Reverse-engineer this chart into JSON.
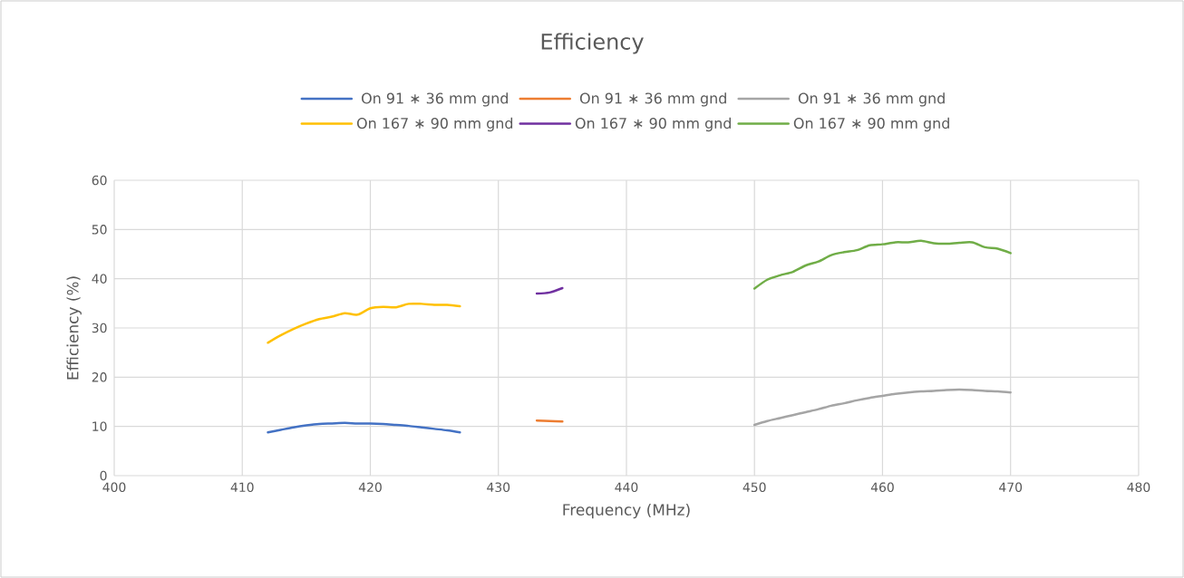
{
  "chart_data": {
    "type": "line",
    "title": "Efficiency",
    "xlabel": "Frequency (MHz)",
    "ylabel": "Efficiency (%)",
    "xlim": [
      400,
      480
    ],
    "xticks": [
      400,
      410,
      420,
      430,
      440,
      450,
      460,
      470,
      480
    ],
    "ylim": [
      0,
      60
    ],
    "yticks": [
      0,
      10,
      20,
      30,
      40,
      50,
      60
    ],
    "grid": true,
    "legend": "top",
    "marker": "none",
    "line_style": "solid",
    "series": [
      {
        "name": "On 91 ∗ 36 mm gnd",
        "color": "#4472c4",
        "x": [
          412,
          413,
          414,
          415,
          416,
          417,
          418,
          419,
          420,
          421,
          422,
          423,
          424,
          425,
          426,
          427
        ],
        "values": [
          8.8,
          9.3,
          9.8,
          10.2,
          10.5,
          10.6,
          10.7,
          10.6,
          10.6,
          10.5,
          10.3,
          10.1,
          9.8,
          9.5,
          9.2,
          8.8
        ]
      },
      {
        "name": "On 91 ∗ 36 mm gnd",
        "color": "#ed7d31",
        "x": [
          433,
          434,
          435
        ],
        "values": [
          11.2,
          11.1,
          11.0
        ]
      },
      {
        "name": "On 91 ∗ 36 mm gnd",
        "color": "#a5a5a5",
        "x": [
          450,
          451,
          452,
          453,
          454,
          455,
          456,
          457,
          458,
          459,
          460,
          461,
          462,
          463,
          464,
          465,
          466,
          467,
          468,
          469,
          470
        ],
        "values": [
          10.3,
          11.1,
          11.7,
          12.3,
          12.9,
          13.5,
          14.2,
          14.7,
          15.3,
          15.8,
          16.2,
          16.6,
          16.9,
          17.1,
          17.2,
          17.4,
          17.5,
          17.4,
          17.2,
          17.1,
          16.9
        ]
      },
      {
        "name": "On 167 ∗ 90 mm gnd",
        "color": "#ffc000",
        "x": [
          412,
          413,
          414,
          415,
          416,
          417,
          418,
          419,
          420,
          421,
          422,
          423,
          424,
          425,
          426,
          427
        ],
        "values": [
          27,
          28.5,
          29.8,
          30.9,
          31.8,
          32.3,
          33,
          32.7,
          34,
          34.3,
          34.2,
          34.9,
          34.9,
          34.7,
          34.7,
          34.4
        ]
      },
      {
        "name": "On 167 ∗ 90 mm gnd",
        "color": "#7030a0",
        "x": [
          433,
          434,
          435
        ],
        "values": [
          37,
          37.2,
          38.1
        ]
      },
      {
        "name": "On 167 ∗ 90 mm gnd",
        "color": "#70ad47",
        "x": [
          450,
          451,
          452,
          453,
          454,
          455,
          456,
          457,
          458,
          459,
          460,
          461,
          462,
          463,
          464,
          465,
          466,
          467,
          468,
          469,
          470
        ],
        "values": [
          38,
          39.8,
          40.7,
          41.4,
          42.7,
          43.5,
          44.8,
          45.4,
          45.8,
          46.8,
          47,
          47.4,
          47.4,
          47.7,
          47.2,
          47.1,
          47.3,
          47.4,
          46.4,
          46.1,
          45.2
        ]
      }
    ]
  }
}
